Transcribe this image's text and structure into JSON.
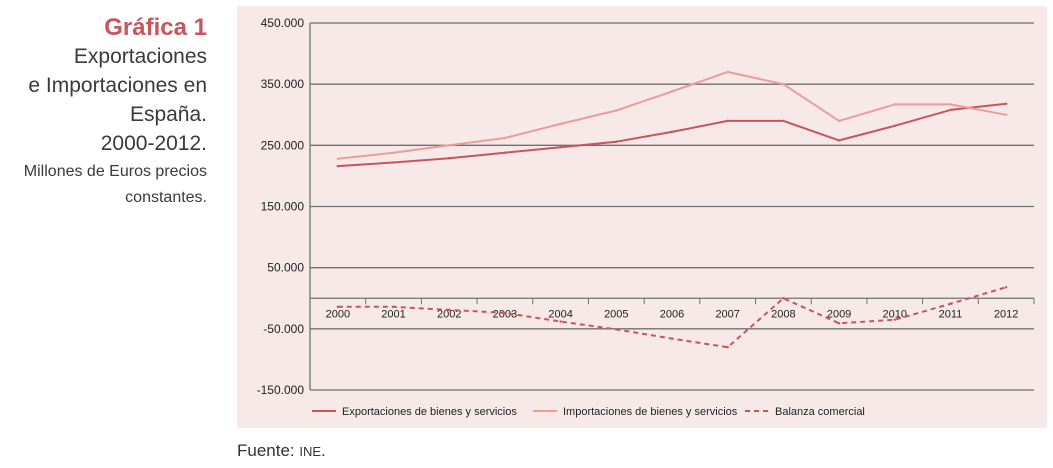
{
  "title": {
    "label": "Gráfica 1",
    "line1": "Exportaciones",
    "line2": "e Importaciones en",
    "line3": "España.",
    "line4": "2000-2012.",
    "units1": "Millones de Euros precios",
    "units2": "constantes."
  },
  "source": {
    "prefix": "Fuente: ",
    "org": "INE",
    "suffix": "."
  },
  "colors": {
    "background": "#f7e9e8",
    "exports": "#c8555e",
    "imports": "#eb9d9e",
    "balance": "#c8555e",
    "grid": "#707070",
    "title_accent": "#c8555e"
  },
  "chart_data": {
    "type": "line",
    "title": "Exportaciones e Importaciones en España. 2000-2012.",
    "xlabel": "",
    "ylabel": "Millones de Euros precios constantes",
    "ylim": [
      -150000,
      450000
    ],
    "yticks": [
      -150000,
      -50000,
      50000,
      150000,
      250000,
      350000,
      450000
    ],
    "ytick_labels": [
      "-150.000",
      "-50.000",
      "50.000",
      "150.000",
      "250.000",
      "350.000",
      "450.000"
    ],
    "grid": true,
    "legend_position": "bottom",
    "categories": [
      "2000",
      "2001",
      "2002",
      "2003",
      "2004",
      "2005",
      "2006",
      "2007",
      "2008",
      "2009",
      "2010",
      "2011",
      "2012"
    ],
    "series": [
      {
        "name": "Exportaciones de bienes y servicios",
        "style": "solid",
        "values": [
          216000,
          222000,
          229000,
          238000,
          247000,
          256000,
          272000,
          290000,
          290000,
          258000,
          282000,
          308000,
          318000
        ]
      },
      {
        "name": "Importaciones de bienes y servicios",
        "style": "solid",
        "values": [
          228000,
          238000,
          250000,
          262000,
          285000,
          307000,
          338000,
          370000,
          350000,
          290000,
          317000,
          317000,
          300000
        ]
      },
      {
        "name": "Balanza comercial",
        "style": "dashed",
        "values": [
          -14000,
          -14000,
          -19000,
          -24000,
          -38000,
          -51000,
          -66000,
          -80000,
          0,
          -41000,
          -35000,
          -9000,
          18000
        ]
      }
    ]
  }
}
